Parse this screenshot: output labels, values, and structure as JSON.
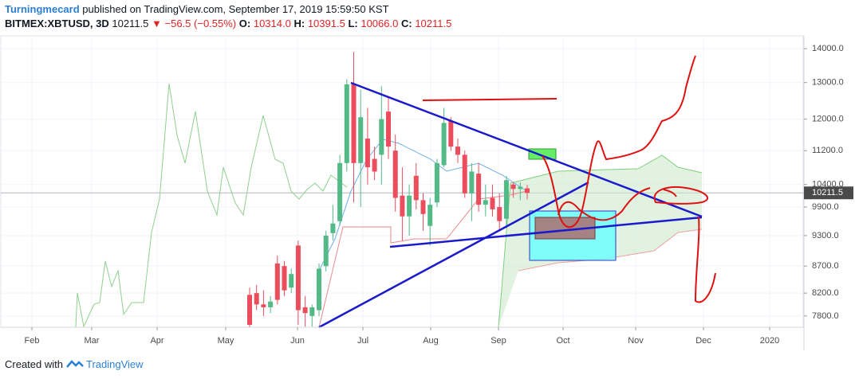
{
  "header": {
    "author": "Turningmecard",
    "published": "published on TradingView.com, September 17, 2019 15:59:50 KST",
    "symbol": "BITMEX:XBTUSD, 3D",
    "price": "10211.5",
    "change": "−56.5 (−0.55%)",
    "ohlc": [
      {
        "key": "O:",
        "value": "10314.0"
      },
      {
        "key": "H:",
        "value": "10391.5"
      },
      {
        "key": "L:",
        "value": "10066.0"
      },
      {
        "key": "C:",
        "value": "10211.5"
      }
    ]
  },
  "footer": {
    "text": "Created with",
    "brand": "TradingView"
  },
  "chart_data": {
    "type": "candlestick",
    "log_scale": true,
    "ylim": [
      7610,
      14400
    ],
    "yticks": [
      {
        "value": 14000,
        "label": "14000.0"
      },
      {
        "value": 13000,
        "label": "13000.0"
      },
      {
        "value": 12000,
        "label": "12000.0"
      },
      {
        "value": 11200,
        "label": "11200.0"
      },
      {
        "value": 10400,
        "label": "10400.0"
      },
      {
        "value": 9900,
        "label": "9900.0"
      },
      {
        "value": 9300,
        "label": "9300.0"
      },
      {
        "value": 8700,
        "label": "8700.0"
      },
      {
        "value": 8200,
        "label": "8200.0"
      },
      {
        "value": 7800,
        "label": "7800.0"
      }
    ],
    "x_labels": [
      "Feb",
      "Mar",
      "Apr",
      "May",
      "Jun",
      "Jul",
      "Aug",
      "Sep",
      "Oct",
      "Nov",
      "Dec",
      "2020"
    ],
    "last_price": 10211.5,
    "up_color": "#53b987",
    "down_color": "#eb4d5c",
    "candles": [
      {
        "open": 8170,
        "high": 8300,
        "low": 7610,
        "close": 7650
      },
      {
        "open": 8200,
        "high": 8350,
        "low": 7900,
        "close": 8000
      },
      {
        "open": 8000,
        "high": 8250,
        "low": 7800,
        "close": 7950
      },
      {
        "open": 7950,
        "high": 8150,
        "low": 7850,
        "close": 8050
      },
      {
        "open": 8750,
        "high": 8900,
        "low": 8000,
        "close": 8080
      },
      {
        "open": 8700,
        "high": 8800,
        "low": 8150,
        "close": 8250
      },
      {
        "open": 8300,
        "high": 8650,
        "low": 8200,
        "close": 8550
      },
      {
        "open": 9100,
        "high": 9200,
        "low": 7650,
        "close": 7900
      },
      {
        "open": 7950,
        "high": 8150,
        "low": 7620,
        "close": 7850
      },
      {
        "open": 7800,
        "high": 8000,
        "low": 7620,
        "close": 7950
      },
      {
        "open": 7900,
        "high": 8750,
        "low": 7800,
        "close": 8650
      },
      {
        "open": 8700,
        "high": 9400,
        "low": 8600,
        "close": 9300
      },
      {
        "open": 9350,
        "high": 9950,
        "low": 9200,
        "close": 9550
      },
      {
        "open": 9600,
        "high": 11100,
        "low": 9500,
        "close": 10900
      },
      {
        "open": 10900,
        "high": 13100,
        "low": 10700,
        "close": 12950
      },
      {
        "open": 12950,
        "high": 13900,
        "low": 10000,
        "close": 10900
      },
      {
        "open": 10900,
        "high": 12800,
        "low": 9900,
        "close": 12050
      },
      {
        "open": 11500,
        "high": 12300,
        "low": 10400,
        "close": 10800
      },
      {
        "open": 11000,
        "high": 11300,
        "low": 10500,
        "close": 10700
      },
      {
        "open": 11100,
        "high": 12900,
        "low": 10400,
        "close": 12000
      },
      {
        "open": 12200,
        "high": 12600,
        "low": 11000,
        "close": 11300
      },
      {
        "open": 11200,
        "high": 11600,
        "low": 9800,
        "close": 10100
      },
      {
        "open": 10150,
        "high": 10800,
        "low": 9200,
        "close": 9700
      },
      {
        "open": 9700,
        "high": 10400,
        "low": 9300,
        "close": 10150
      },
      {
        "open": 10600,
        "high": 10900,
        "low": 9850,
        "close": 10050
      },
      {
        "open": 10050,
        "high": 10200,
        "low": 9400,
        "close": 9750
      },
      {
        "open": 9500,
        "high": 10100,
        "low": 9100,
        "close": 9950
      },
      {
        "open": 10000,
        "high": 11000,
        "low": 9900,
        "close": 10900
      },
      {
        "open": 10850,
        "high": 12300,
        "low": 10800,
        "close": 11900
      },
      {
        "open": 11950,
        "high": 12050,
        "low": 11200,
        "close": 11300
      },
      {
        "open": 11300,
        "high": 11500,
        "low": 10900,
        "close": 11100
      },
      {
        "open": 11100,
        "high": 11200,
        "low": 10100,
        "close": 10200
      },
      {
        "open": 10200,
        "high": 10900,
        "low": 9600,
        "close": 10700
      },
      {
        "open": 10650,
        "high": 10900,
        "low": 9800,
        "close": 9950
      },
      {
        "open": 9950,
        "high": 10400,
        "low": 9700,
        "close": 10050
      },
      {
        "open": 10100,
        "high": 10400,
        "low": 9700,
        "close": 9850
      },
      {
        "open": 9900,
        "high": 10200,
        "low": 9400,
        "close": 9600
      },
      {
        "open": 9650,
        "high": 10600,
        "low": 9500,
        "close": 10500
      },
      {
        "open": 10400,
        "high": 10450,
        "low": 10100,
        "close": 10300
      },
      {
        "open": 10300,
        "high": 10450,
        "low": 10050,
        "close": 10350
      },
      {
        "open": 10314,
        "high": 10391.5,
        "low": 10066,
        "close": 10211.5
      }
    ]
  }
}
